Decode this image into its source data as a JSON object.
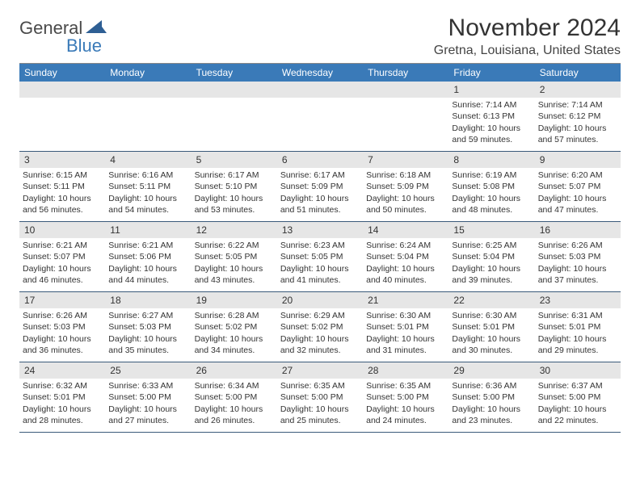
{
  "logo": {
    "text1": "General",
    "text2": "Blue",
    "color1": "#4a4a4a",
    "color2": "#3a7ab8",
    "triangle_color": "#2e5f94"
  },
  "title": "November 2024",
  "location": "Gretna, Louisiana, United States",
  "header_bg": "#3a7ab8",
  "header_text_color": "#ffffff",
  "daynum_bg": "#e6e6e6",
  "row_border": "#3a5a7a",
  "weekdays": [
    "Sunday",
    "Monday",
    "Tuesday",
    "Wednesday",
    "Thursday",
    "Friday",
    "Saturday"
  ],
  "weeks": [
    [
      {
        "n": "",
        "lines": []
      },
      {
        "n": "",
        "lines": []
      },
      {
        "n": "",
        "lines": []
      },
      {
        "n": "",
        "lines": []
      },
      {
        "n": "",
        "lines": []
      },
      {
        "n": "1",
        "lines": [
          "Sunrise: 7:14 AM",
          "Sunset: 6:13 PM",
          "Daylight: 10 hours",
          "and 59 minutes."
        ]
      },
      {
        "n": "2",
        "lines": [
          "Sunrise: 7:14 AM",
          "Sunset: 6:12 PM",
          "Daylight: 10 hours",
          "and 57 minutes."
        ]
      }
    ],
    [
      {
        "n": "3",
        "lines": [
          "Sunrise: 6:15 AM",
          "Sunset: 5:11 PM",
          "Daylight: 10 hours",
          "and 56 minutes."
        ]
      },
      {
        "n": "4",
        "lines": [
          "Sunrise: 6:16 AM",
          "Sunset: 5:11 PM",
          "Daylight: 10 hours",
          "and 54 minutes."
        ]
      },
      {
        "n": "5",
        "lines": [
          "Sunrise: 6:17 AM",
          "Sunset: 5:10 PM",
          "Daylight: 10 hours",
          "and 53 minutes."
        ]
      },
      {
        "n": "6",
        "lines": [
          "Sunrise: 6:17 AM",
          "Sunset: 5:09 PM",
          "Daylight: 10 hours",
          "and 51 minutes."
        ]
      },
      {
        "n": "7",
        "lines": [
          "Sunrise: 6:18 AM",
          "Sunset: 5:09 PM",
          "Daylight: 10 hours",
          "and 50 minutes."
        ]
      },
      {
        "n": "8",
        "lines": [
          "Sunrise: 6:19 AM",
          "Sunset: 5:08 PM",
          "Daylight: 10 hours",
          "and 48 minutes."
        ]
      },
      {
        "n": "9",
        "lines": [
          "Sunrise: 6:20 AM",
          "Sunset: 5:07 PM",
          "Daylight: 10 hours",
          "and 47 minutes."
        ]
      }
    ],
    [
      {
        "n": "10",
        "lines": [
          "Sunrise: 6:21 AM",
          "Sunset: 5:07 PM",
          "Daylight: 10 hours",
          "and 46 minutes."
        ]
      },
      {
        "n": "11",
        "lines": [
          "Sunrise: 6:21 AM",
          "Sunset: 5:06 PM",
          "Daylight: 10 hours",
          "and 44 minutes."
        ]
      },
      {
        "n": "12",
        "lines": [
          "Sunrise: 6:22 AM",
          "Sunset: 5:05 PM",
          "Daylight: 10 hours",
          "and 43 minutes."
        ]
      },
      {
        "n": "13",
        "lines": [
          "Sunrise: 6:23 AM",
          "Sunset: 5:05 PM",
          "Daylight: 10 hours",
          "and 41 minutes."
        ]
      },
      {
        "n": "14",
        "lines": [
          "Sunrise: 6:24 AM",
          "Sunset: 5:04 PM",
          "Daylight: 10 hours",
          "and 40 minutes."
        ]
      },
      {
        "n": "15",
        "lines": [
          "Sunrise: 6:25 AM",
          "Sunset: 5:04 PM",
          "Daylight: 10 hours",
          "and 39 minutes."
        ]
      },
      {
        "n": "16",
        "lines": [
          "Sunrise: 6:26 AM",
          "Sunset: 5:03 PM",
          "Daylight: 10 hours",
          "and 37 minutes."
        ]
      }
    ],
    [
      {
        "n": "17",
        "lines": [
          "Sunrise: 6:26 AM",
          "Sunset: 5:03 PM",
          "Daylight: 10 hours",
          "and 36 minutes."
        ]
      },
      {
        "n": "18",
        "lines": [
          "Sunrise: 6:27 AM",
          "Sunset: 5:03 PM",
          "Daylight: 10 hours",
          "and 35 minutes."
        ]
      },
      {
        "n": "19",
        "lines": [
          "Sunrise: 6:28 AM",
          "Sunset: 5:02 PM",
          "Daylight: 10 hours",
          "and 34 minutes."
        ]
      },
      {
        "n": "20",
        "lines": [
          "Sunrise: 6:29 AM",
          "Sunset: 5:02 PM",
          "Daylight: 10 hours",
          "and 32 minutes."
        ]
      },
      {
        "n": "21",
        "lines": [
          "Sunrise: 6:30 AM",
          "Sunset: 5:01 PM",
          "Daylight: 10 hours",
          "and 31 minutes."
        ]
      },
      {
        "n": "22",
        "lines": [
          "Sunrise: 6:30 AM",
          "Sunset: 5:01 PM",
          "Daylight: 10 hours",
          "and 30 minutes."
        ]
      },
      {
        "n": "23",
        "lines": [
          "Sunrise: 6:31 AM",
          "Sunset: 5:01 PM",
          "Daylight: 10 hours",
          "and 29 minutes."
        ]
      }
    ],
    [
      {
        "n": "24",
        "lines": [
          "Sunrise: 6:32 AM",
          "Sunset: 5:01 PM",
          "Daylight: 10 hours",
          "and 28 minutes."
        ]
      },
      {
        "n": "25",
        "lines": [
          "Sunrise: 6:33 AM",
          "Sunset: 5:00 PM",
          "Daylight: 10 hours",
          "and 27 minutes."
        ]
      },
      {
        "n": "26",
        "lines": [
          "Sunrise: 6:34 AM",
          "Sunset: 5:00 PM",
          "Daylight: 10 hours",
          "and 26 minutes."
        ]
      },
      {
        "n": "27",
        "lines": [
          "Sunrise: 6:35 AM",
          "Sunset: 5:00 PM",
          "Daylight: 10 hours",
          "and 25 minutes."
        ]
      },
      {
        "n": "28",
        "lines": [
          "Sunrise: 6:35 AM",
          "Sunset: 5:00 PM",
          "Daylight: 10 hours",
          "and 24 minutes."
        ]
      },
      {
        "n": "29",
        "lines": [
          "Sunrise: 6:36 AM",
          "Sunset: 5:00 PM",
          "Daylight: 10 hours",
          "and 23 minutes."
        ]
      },
      {
        "n": "30",
        "lines": [
          "Sunrise: 6:37 AM",
          "Sunset: 5:00 PM",
          "Daylight: 10 hours",
          "and 22 minutes."
        ]
      }
    ]
  ]
}
